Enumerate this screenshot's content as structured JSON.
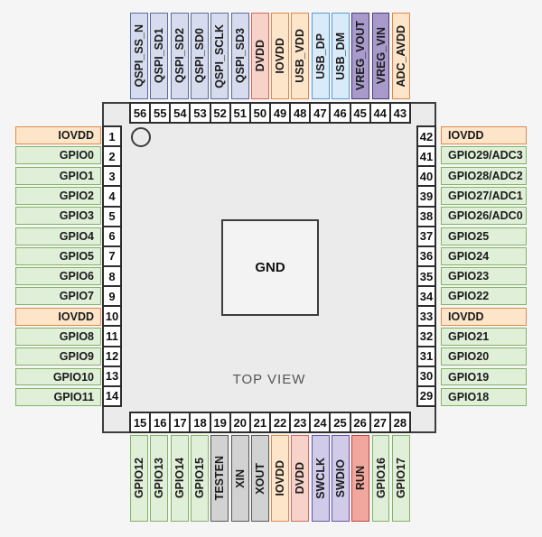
{
  "package": {
    "center_pad_label": "GND",
    "view_label": "TOP VIEW",
    "body_fill": "#ebebeb",
    "body_border": "#3d3d3d",
    "background": "#f5f5f5",
    "number_box_fill": "#ffffff",
    "number_box_border": "#2d2d2d"
  },
  "pin_types": {
    "gpio": {
      "fill": "#e0efd8",
      "border": "#82b366"
    },
    "iovdd": {
      "fill": "#fce5c9",
      "border": "#e2884a"
    },
    "dvdd": {
      "fill": "#f6d2c9",
      "border": "#d4695e"
    },
    "run": {
      "fill": "#f0a79d",
      "border": "#c4453a"
    },
    "qspi": {
      "fill": "#d6dcee",
      "border": "#5c6b9c"
    },
    "usb": {
      "fill": "#d9ebf9",
      "border": "#5b9bd5"
    },
    "vreg": {
      "fill": "#a89bcb",
      "border": "#4c3d73"
    },
    "swd": {
      "fill": "#cfcbe9",
      "border": "#6458a8"
    },
    "test": {
      "fill": "#d2d2d2",
      "border": "#595959"
    }
  },
  "sides": {
    "top": [
      {
        "num": "56",
        "label": "QSPI_SS_N",
        "type": "qspi"
      },
      {
        "num": "55",
        "label": "QSPI_SD1",
        "type": "qspi"
      },
      {
        "num": "54",
        "label": "QSPI_SD2",
        "type": "qspi"
      },
      {
        "num": "53",
        "label": "QSPI_SD0",
        "type": "qspi"
      },
      {
        "num": "52",
        "label": "QSPI_SCLK",
        "type": "qspi"
      },
      {
        "num": "51",
        "label": "QSPI_SD3",
        "type": "qspi"
      },
      {
        "num": "50",
        "label": "DVDD",
        "type": "dvdd"
      },
      {
        "num": "49",
        "label": "IOVDD",
        "type": "iovdd"
      },
      {
        "num": "48",
        "label": "USB_VDD",
        "type": "iovdd"
      },
      {
        "num": "47",
        "label": "USB_DP",
        "type": "usb"
      },
      {
        "num": "46",
        "label": "USB_DM",
        "type": "usb"
      },
      {
        "num": "45",
        "label": "VREG_VOUT",
        "type": "vreg"
      },
      {
        "num": "44",
        "label": "VREG_VIN",
        "type": "vreg"
      },
      {
        "num": "43",
        "label": "ADC_AVDD",
        "type": "iovdd"
      }
    ],
    "left": [
      {
        "num": "1",
        "label": "IOVDD",
        "type": "iovdd"
      },
      {
        "num": "2",
        "label": "GPIO0",
        "type": "gpio"
      },
      {
        "num": "3",
        "label": "GPIO1",
        "type": "gpio"
      },
      {
        "num": "4",
        "label": "GPIO2",
        "type": "gpio"
      },
      {
        "num": "5",
        "label": "GPIO3",
        "type": "gpio"
      },
      {
        "num": "6",
        "label": "GPIO4",
        "type": "gpio"
      },
      {
        "num": "7",
        "label": "GPIO5",
        "type": "gpio"
      },
      {
        "num": "8",
        "label": "GPIO6",
        "type": "gpio"
      },
      {
        "num": "9",
        "label": "GPIO7",
        "type": "gpio"
      },
      {
        "num": "10",
        "label": "IOVDD",
        "type": "iovdd"
      },
      {
        "num": "11",
        "label": "GPIO8",
        "type": "gpio"
      },
      {
        "num": "12",
        "label": "GPIO9",
        "type": "gpio"
      },
      {
        "num": "13",
        "label": "GPIO10",
        "type": "gpio"
      },
      {
        "num": "14",
        "label": "GPIO11",
        "type": "gpio"
      }
    ],
    "right": [
      {
        "num": "42",
        "label": "IOVDD",
        "type": "iovdd"
      },
      {
        "num": "41",
        "label": "GPIO29/ADC3",
        "type": "gpio"
      },
      {
        "num": "40",
        "label": "GPIO28/ADC2",
        "type": "gpio"
      },
      {
        "num": "39",
        "label": "GPIO27/ADC1",
        "type": "gpio"
      },
      {
        "num": "38",
        "label": "GPIO26/ADC0",
        "type": "gpio"
      },
      {
        "num": "37",
        "label": "GPIO25",
        "type": "gpio"
      },
      {
        "num": "36",
        "label": "GPIO24",
        "type": "gpio"
      },
      {
        "num": "35",
        "label": "GPIO23",
        "type": "gpio"
      },
      {
        "num": "34",
        "label": "GPIO22",
        "type": "gpio"
      },
      {
        "num": "33",
        "label": "IOVDD",
        "type": "iovdd"
      },
      {
        "num": "32",
        "label": "GPIO21",
        "type": "gpio"
      },
      {
        "num": "31",
        "label": "GPIO20",
        "type": "gpio"
      },
      {
        "num": "30",
        "label": "GPIO19",
        "type": "gpio"
      },
      {
        "num": "29",
        "label": "GPIO18",
        "type": "gpio"
      }
    ],
    "bottom": [
      {
        "num": "15",
        "label": "GPIO12",
        "type": "gpio"
      },
      {
        "num": "16",
        "label": "GPIO13",
        "type": "gpio"
      },
      {
        "num": "17",
        "label": "GPIO14",
        "type": "gpio"
      },
      {
        "num": "18",
        "label": "GPIO15",
        "type": "gpio"
      },
      {
        "num": "19",
        "label": "TESTEN",
        "type": "test"
      },
      {
        "num": "20",
        "label": "XIN",
        "type": "test"
      },
      {
        "num": "21",
        "label": "XOUT",
        "type": "test"
      },
      {
        "num": "22",
        "label": "IOVDD",
        "type": "iovdd"
      },
      {
        "num": "23",
        "label": "DVDD",
        "type": "dvdd"
      },
      {
        "num": "24",
        "label": "SWCLK",
        "type": "swd"
      },
      {
        "num": "25",
        "label": "SWDIO",
        "type": "swd"
      },
      {
        "num": "26",
        "label": "RUN",
        "type": "run"
      },
      {
        "num": "27",
        "label": "GPIO16",
        "type": "gpio"
      },
      {
        "num": "28",
        "label": "GPIO17",
        "type": "gpio"
      }
    ]
  }
}
